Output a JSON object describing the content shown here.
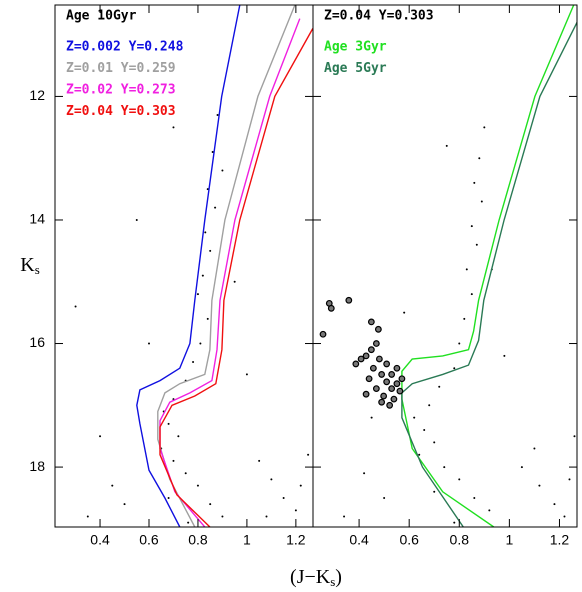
{
  "axis_labels": {
    "x": {
      "open": "(J−K",
      "sub": "s",
      "close": ")"
    },
    "y": {
      "main": "K",
      "sub": "s"
    }
  },
  "chart_data": [
    {
      "type": "line",
      "annotation": "Age 10Gyr",
      "xlim": [
        0.216,
        1.27
      ],
      "ylim": [
        10.52,
        18.97
      ],
      "y_inverted": true,
      "xticks": [
        0.4,
        0.6,
        0.8,
        1,
        1.2
      ],
      "yticks": [
        12,
        14,
        16,
        18
      ],
      "ytick_labels": true,
      "series": [
        {
          "name": "Z=0.002 Y=0.248",
          "color": "#1010e0",
          "x": [
            0.971,
            0.897,
            0.828,
            0.787,
            0.767,
            0.726,
            0.645,
            0.563,
            0.55,
            0.563,
            0.6,
            0.665,
            0.726
          ],
          "y": [
            10.52,
            12,
            14,
            15.3,
            16,
            16.4,
            16.6,
            16.75,
            17.0,
            17.3,
            18.05,
            18.5,
            18.97
          ]
        },
        {
          "name": "Z=0.01 Y=0.259",
          "color": "#a0a0a0",
          "x": [
            1.196,
            1.045,
            0.91,
            0.857,
            0.849,
            0.828,
            0.726,
            0.665,
            0.636,
            0.636,
            0.685,
            0.787
          ],
          "y": [
            10.52,
            12,
            14,
            15.3,
            16.1,
            16.5,
            16.65,
            16.8,
            17.1,
            17.55,
            18.2,
            18.97
          ]
        },
        {
          "name": "Z=0.02 Y=0.273",
          "color": "#f020e0",
          "x": [
            1.216,
            1.093,
            0.951,
            0.89,
            0.878,
            0.857,
            0.767,
            0.685,
            0.645,
            0.645,
            0.706,
            0.828
          ],
          "y": [
            10.74,
            12,
            14,
            15.3,
            16.1,
            16.6,
            16.8,
            16.95,
            17.25,
            17.7,
            18.4,
            18.97
          ]
        },
        {
          "name": "Z=0.04 Y=0.303",
          "color": "#f01010",
          "x": [
            1.269,
            1.114,
            0.971,
            0.906,
            0.898,
            0.873,
            0.787,
            0.694,
            0.645,
            0.645,
            0.714,
            0.849
          ],
          "y": [
            10.9,
            12,
            14,
            15.3,
            16.1,
            16.65,
            16.85,
            17.0,
            17.35,
            17.8,
            18.45,
            18.97
          ]
        }
      ],
      "stars": {
        "x": [
          0.88,
          0.86,
          0.9,
          0.84,
          0.87,
          0.83,
          0.85,
          0.82,
          0.8,
          0.84,
          0.81,
          0.78,
          0.75,
          0.7,
          0.66,
          0.68,
          0.72,
          0.65,
          0.7,
          0.75,
          0.8,
          0.68,
          0.85,
          0.9,
          0.76,
          1.05,
          1.1,
          1.15,
          1.2,
          1.08,
          1.22,
          0.5,
          0.45,
          0.35,
          0.3,
          0.4,
          0.55,
          0.7,
          1.0,
          1.25,
          0.95,
          0.6
        ],
        "y": [
          12.3,
          12.9,
          13.2,
          13.5,
          13.8,
          14.2,
          14.5,
          14.9,
          15.2,
          15.6,
          16.0,
          16.3,
          16.6,
          16.9,
          17.1,
          17.3,
          17.5,
          17.7,
          17.9,
          18.1,
          18.3,
          18.5,
          18.6,
          18.8,
          18.9,
          17.9,
          18.2,
          18.5,
          18.7,
          18.8,
          18.3,
          18.6,
          18.3,
          18.8,
          15.4,
          17.5,
          14.0,
          12.5,
          16.5,
          17.8,
          15.0,
          16.0
        ]
      }
    },
    {
      "type": "line",
      "annotation": "Z=0.04 Y=0.303",
      "xlim": [
        0.216,
        1.27
      ],
      "ylim": [
        10.52,
        18.97
      ],
      "y_inverted": true,
      "xticks": [
        0.4,
        0.6,
        0.8,
        1,
        1.2
      ],
      "yticks": [
        12,
        14,
        16,
        18
      ],
      "ytick_labels": false,
      "series": [
        {
          "name": "Age 3Gyr",
          "color": "#20e020",
          "x": [
            1.257,
            1.102,
            0.959,
            0.877,
            0.857,
            0.837,
            0.734,
            0.612,
            0.571,
            0.571,
            0.612,
            0.734,
            0.938
          ],
          "y": [
            10.52,
            12,
            14,
            15.3,
            15.8,
            16.1,
            16.2,
            16.25,
            16.45,
            16.9,
            17.7,
            18.4,
            18.97
          ]
        },
        {
          "name": "Age 5Gyr",
          "color": "#2a7a55",
          "x": [
            1.285,
            1.122,
            0.979,
            0.898,
            0.877,
            0.837,
            0.734,
            0.612,
            0.571,
            0.571,
            0.653,
            0.816
          ],
          "y": [
            10.68,
            12,
            14,
            15.3,
            15.95,
            16.35,
            16.5,
            16.65,
            16.8,
            17.2,
            18.0,
            18.97
          ]
        }
      ],
      "stars": {
        "x": [
          0.9,
          0.88,
          0.86,
          0.89,
          0.85,
          0.87,
          0.83,
          0.85,
          0.82,
          0.8,
          0.78,
          0.72,
          0.68,
          0.62,
          0.66,
          0.7,
          0.64,
          0.74,
          0.8,
          0.7,
          0.86,
          0.92,
          0.78,
          1.05,
          1.12,
          1.18,
          1.22,
          1.1,
          1.24,
          0.5,
          0.42,
          0.34,
          0.45,
          0.98,
          1.26,
          0.93,
          0.58,
          0.75
        ],
        "y": [
          12.5,
          13.0,
          13.4,
          13.7,
          14.1,
          14.4,
          14.8,
          15.2,
          15.6,
          16.0,
          16.4,
          16.7,
          17.0,
          17.2,
          17.4,
          17.6,
          17.8,
          18.0,
          18.2,
          18.4,
          18.5,
          18.7,
          18.9,
          18.0,
          18.3,
          18.6,
          18.8,
          17.7,
          18.2,
          18.5,
          18.1,
          18.8,
          17.2,
          16.2,
          17.5,
          14.8,
          15.5,
          12.8
        ]
      },
      "circles": {
        "x": [
          0.281,
          0.289,
          0.359,
          0.256,
          0.449,
          0.477,
          0.469,
          0.449,
          0.428,
          0.408,
          0.481,
          0.51,
          0.457,
          0.49,
          0.53,
          0.551,
          0.44,
          0.51,
          0.469,
          0.53,
          0.551,
          0.571,
          0.498,
          0.539,
          0.428,
          0.522,
          0.49,
          0.563,
          0.387
        ],
        "y": [
          15.35,
          15.43,
          15.3,
          15.85,
          15.65,
          15.77,
          16.0,
          16.1,
          16.2,
          16.25,
          16.25,
          16.33,
          16.4,
          16.5,
          16.5,
          16.4,
          16.57,
          16.62,
          16.73,
          16.73,
          16.65,
          16.57,
          16.85,
          16.9,
          16.82,
          17.0,
          16.95,
          16.77,
          16.33
        ]
      }
    }
  ]
}
